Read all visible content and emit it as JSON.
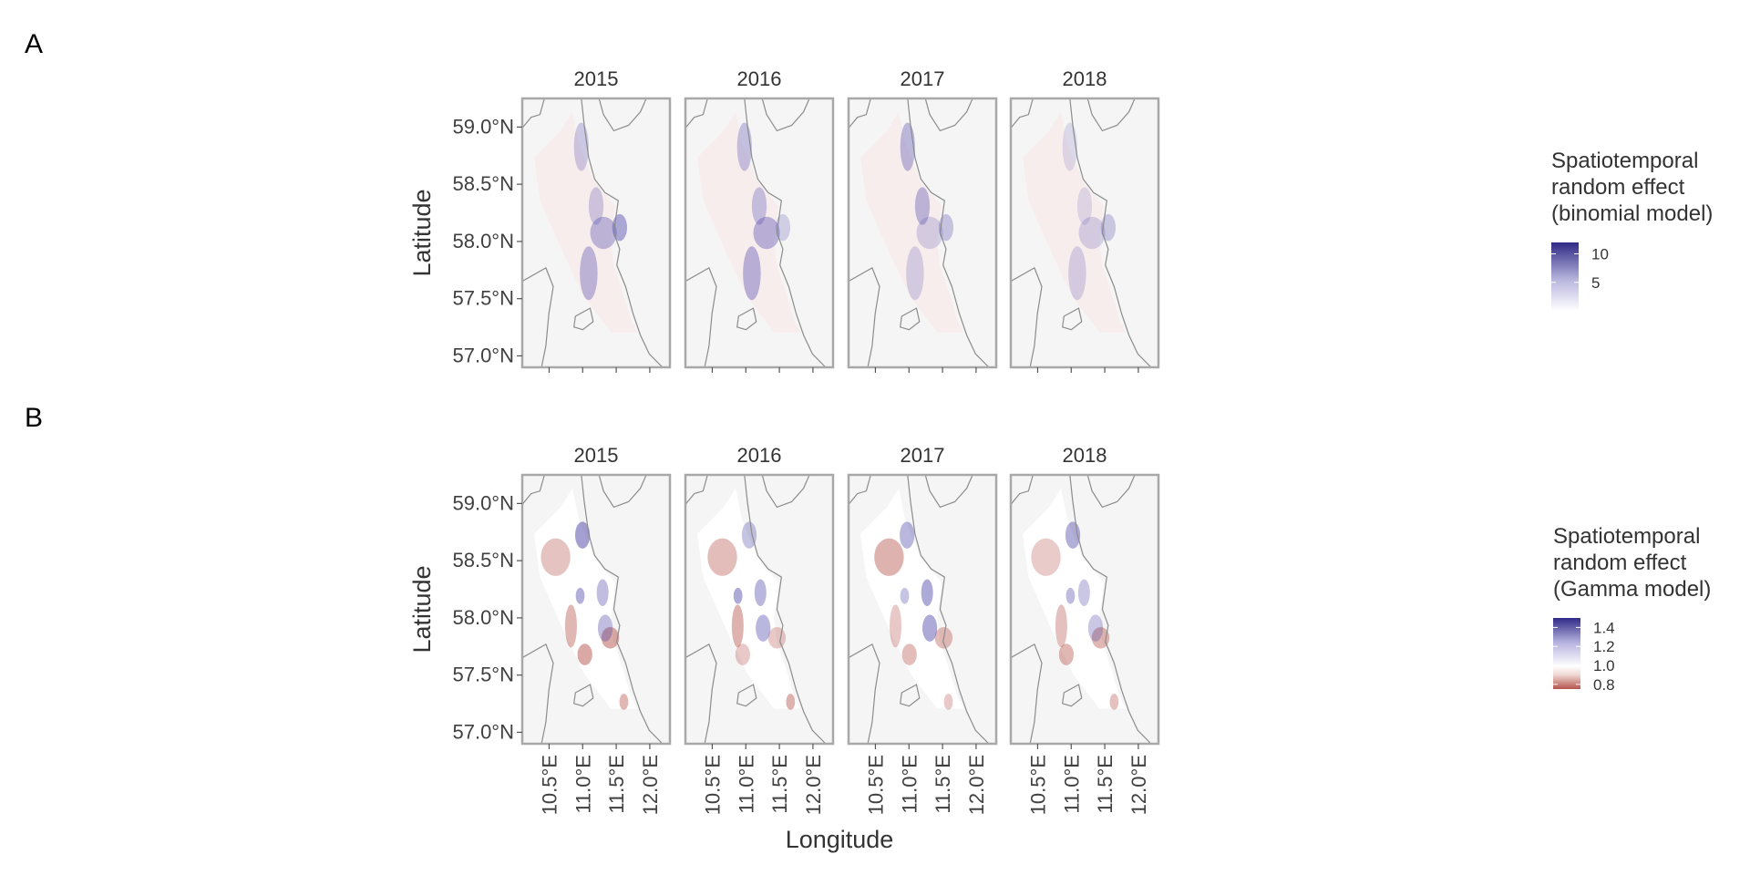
{
  "chart_data": [
    {
      "panel": "A",
      "type": "heatmap",
      "facets": [
        "2015",
        "2016",
        "2017",
        "2018"
      ],
      "xlabel": "Longitude",
      "ylabel": "Latitude",
      "x_ticks": [
        "10.5°E",
        "11.0°E",
        "11.5°E",
        "12.0°E"
      ],
      "x_tick_values": [
        10.5,
        11.0,
        11.5,
        12.0
      ],
      "y_ticks": [
        "57.0°N",
        "57.5°N",
        "58.0°N",
        "58.5°N",
        "59.0°N"
      ],
      "y_tick_values": [
        57.0,
        57.5,
        58.0,
        58.5,
        59.0
      ],
      "xlim": [
        10.1,
        12.3
      ],
      "ylim": [
        56.9,
        59.25
      ],
      "x_tick_labels_shown": false,
      "legend": {
        "title_lines": [
          "Spatiotemporal",
          "random effect",
          "(binomial model)"
        ],
        "ticks": [
          "10",
          "5"
        ],
        "tick_values": [
          10,
          5
        ],
        "range": [
          0,
          12
        ],
        "colors": [
          "#ffffff",
          "#b9b6de",
          "#2f2a86"
        ]
      },
      "facet_intensity": [
        1.0,
        0.85,
        0.8,
        0.6
      ]
    },
    {
      "panel": "B",
      "type": "heatmap",
      "facets": [
        "2015",
        "2016",
        "2017",
        "2018"
      ],
      "xlabel": "Longitude",
      "ylabel": "Latitude",
      "x_ticks": [
        "10.5°E",
        "11.0°E",
        "11.5°E",
        "12.0°E"
      ],
      "x_tick_values": [
        10.5,
        11.0,
        11.5,
        12.0
      ],
      "y_ticks": [
        "57.0°N",
        "57.5°N",
        "58.0°N",
        "58.5°N",
        "59.0°N"
      ],
      "y_tick_values": [
        57.0,
        57.5,
        58.0,
        58.5,
        59.0
      ],
      "xlim": [
        10.1,
        12.3
      ],
      "ylim": [
        56.9,
        59.25
      ],
      "x_tick_labels_shown": true,
      "legend": {
        "title_lines": [
          "Spatiotemporal",
          "random effect",
          "(Gamma model)"
        ],
        "ticks": [
          "1.4",
          "1.2",
          "1.0",
          "0.8"
        ],
        "tick_values": [
          1.4,
          1.2,
          1.0,
          0.8
        ],
        "range": [
          0.75,
          1.5
        ],
        "colors": [
          "#b5544c",
          "#f5e9e6",
          "#ffffff",
          "#c8c4e6",
          "#2f2a86"
        ]
      },
      "facet_intensity": [
        1.0,
        0.9,
        0.9,
        0.85
      ]
    }
  ],
  "figure": {
    "panel_labels": [
      "A",
      "B"
    ],
    "background_color": "#f5f5f5",
    "coast_color": "#8c8c8c",
    "frame_color": "#a8a8a8",
    "grid": false
  }
}
